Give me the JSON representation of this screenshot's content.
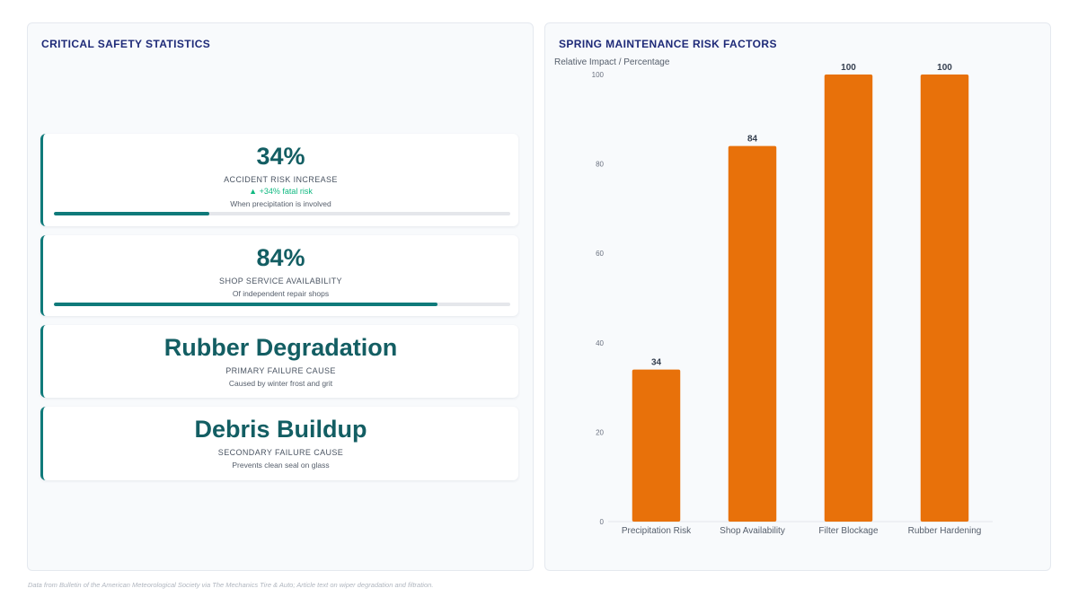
{
  "left_panel": {
    "title": "CRITICAL SAFETY STATISTICS",
    "cards": [
      {
        "value": "34%",
        "label": "ACCIDENT RISK INCREASE",
        "trend": "▲ +34% fatal risk",
        "note": "When precipitation is involved",
        "progress": 0.34
      },
      {
        "value": "84%",
        "label": "SHOP SERVICE AVAILABILITY",
        "note": "Of independent repair shops",
        "progress": 0.84
      },
      {
        "value": "Rubber Degradation",
        "label": "PRIMARY FAILURE CAUSE",
        "note": "Caused by winter frost and grit"
      },
      {
        "value": "Debris Buildup",
        "label": "SECONDARY FAILURE CAUSE",
        "note": "Prevents clean seal on glass"
      }
    ]
  },
  "right_panel": {
    "title": "SPRING MAINTENANCE RISK FACTORS"
  },
  "chart_data": {
    "type": "bar",
    "title": "SPRING MAINTENANCE RISK FACTORS",
    "categories": [
      "Precipitation Risk",
      "Shop Availability",
      "Filter Blockage",
      "Rubber Hardening"
    ],
    "values": [
      34,
      84,
      100,
      100
    ],
    "data_labels": [
      "34",
      "84",
      "100",
      "100"
    ],
    "ylabel": "Relative Impact / Percentage",
    "xlabel": "",
    "ylim": [
      0,
      100
    ],
    "yticks": [
      0,
      20,
      40,
      60,
      80,
      100
    ],
    "grid": false,
    "bar_color": "#e8710a"
  },
  "footer": {
    "note": "Data from Bulletin of the American Meteorological Society via The Mechanics Tire & Auto; Article text on wiper degradation and filtration."
  }
}
